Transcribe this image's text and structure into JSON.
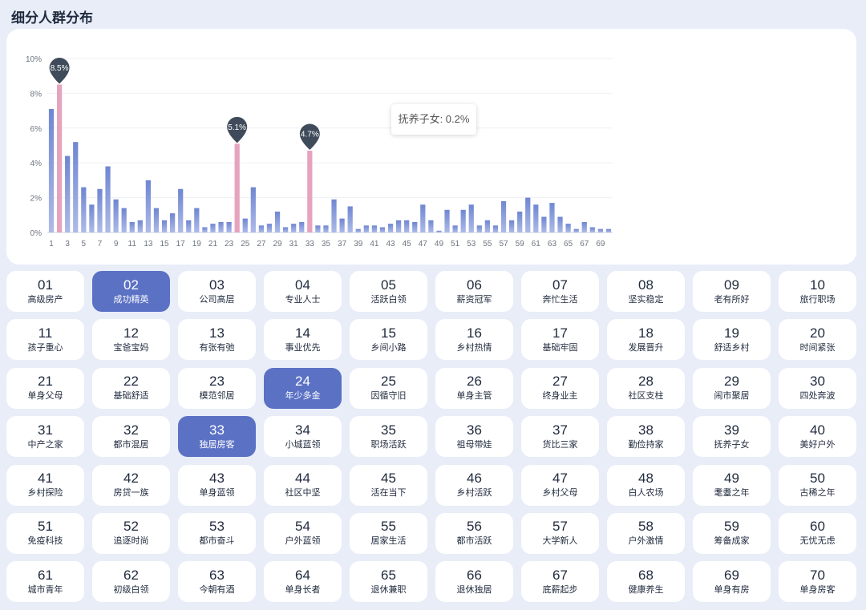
{
  "page_title": "细分人群分布",
  "tooltip": {
    "text": "抚养子女: 0.2%"
  },
  "colors": {
    "bar": "#6f86d1",
    "highlight": "#e6a3be",
    "pin": "#3f4b5a",
    "selected": "#5b71c4"
  },
  "chart_data": {
    "type": "bar",
    "title": "细分人群分布",
    "xlabel": "",
    "ylabel": "",
    "ylim": [
      0,
      10
    ],
    "y_ticks": [
      "0%",
      "2%",
      "4%",
      "6%",
      "8%",
      "10%"
    ],
    "categories": [
      "1",
      "2",
      "3",
      "4",
      "5",
      "6",
      "7",
      "8",
      "9",
      "10",
      "11",
      "12",
      "13",
      "14",
      "15",
      "16",
      "17",
      "18",
      "19",
      "20",
      "21",
      "22",
      "23",
      "24",
      "25",
      "26",
      "27",
      "28",
      "29",
      "30",
      "31",
      "32",
      "33",
      "34",
      "35",
      "36",
      "37",
      "38",
      "39",
      "40",
      "41",
      "42",
      "43",
      "44",
      "45",
      "46",
      "47",
      "48",
      "49",
      "50",
      "51",
      "52",
      "53",
      "54",
      "55",
      "56",
      "57",
      "58",
      "59",
      "60",
      "61",
      "62",
      "63",
      "64",
      "65",
      "66",
      "67",
      "68",
      "69",
      "70"
    ],
    "x_tick_labels": [
      "1",
      "3",
      "5",
      "7",
      "9",
      "11",
      "13",
      "15",
      "17",
      "19",
      "21",
      "23",
      "25",
      "27",
      "29",
      "31",
      "33",
      "35",
      "37",
      "39",
      "41",
      "43",
      "45",
      "47",
      "49",
      "51",
      "53",
      "55",
      "57",
      "59",
      "61",
      "63",
      "65",
      "67",
      "69"
    ],
    "values": [
      7.1,
      8.5,
      4.4,
      5.2,
      2.6,
      1.6,
      2.5,
      3.8,
      1.9,
      1.4,
      0.6,
      0.7,
      3.0,
      1.4,
      0.7,
      1.1,
      2.5,
      0.7,
      1.4,
      0.3,
      0.5,
      0.6,
      0.6,
      5.1,
      0.8,
      2.6,
      0.4,
      0.5,
      1.2,
      0.3,
      0.5,
      0.6,
      4.7,
      0.4,
      0.4,
      1.9,
      0.8,
      1.5,
      0.2,
      0.4,
      0.4,
      0.3,
      0.5,
      0.7,
      0.7,
      0.6,
      1.6,
      0.7,
      0.1,
      1.3,
      0.4,
      1.3,
      1.6,
      0.4,
      0.7,
      0.4,
      1.8,
      0.7,
      1.2,
      2.0,
      1.6,
      0.9,
      1.7,
      0.9,
      0.5,
      0.2,
      0.6,
      0.3,
      0.2,
      0.2
    ],
    "highlighted": [
      2,
      24,
      33
    ],
    "pin_labels": [
      "8.5%",
      "5.1%",
      "4.7%"
    ]
  },
  "segments": [
    {
      "num": "01",
      "name": "高级房产"
    },
    {
      "num": "02",
      "name": "成功精英"
    },
    {
      "num": "03",
      "name": "公司高层"
    },
    {
      "num": "04",
      "name": "专业人士"
    },
    {
      "num": "05",
      "name": "活跃白领"
    },
    {
      "num": "06",
      "name": "薪资冠军"
    },
    {
      "num": "07",
      "name": "奔忙生活"
    },
    {
      "num": "08",
      "name": "坚实稳定"
    },
    {
      "num": "09",
      "name": "老有所好"
    },
    {
      "num": "10",
      "name": "旅行职场"
    },
    {
      "num": "11",
      "name": "孩子重心"
    },
    {
      "num": "12",
      "name": "宝爸宝妈"
    },
    {
      "num": "13",
      "name": "有张有弛"
    },
    {
      "num": "14",
      "name": "事业优先"
    },
    {
      "num": "15",
      "name": "乡间小路"
    },
    {
      "num": "16",
      "name": "乡村热情"
    },
    {
      "num": "17",
      "name": "基础牢固"
    },
    {
      "num": "18",
      "name": "发展晋升"
    },
    {
      "num": "19",
      "name": "舒适乡村"
    },
    {
      "num": "20",
      "name": "时间紧张"
    },
    {
      "num": "21",
      "name": "单身父母"
    },
    {
      "num": "22",
      "name": "基础舒适"
    },
    {
      "num": "23",
      "name": "模范邻居"
    },
    {
      "num": "24",
      "name": "年少多金"
    },
    {
      "num": "25",
      "name": "因循守旧"
    },
    {
      "num": "26",
      "name": "单身主管"
    },
    {
      "num": "27",
      "name": "终身业主"
    },
    {
      "num": "28",
      "name": "社区支柱"
    },
    {
      "num": "29",
      "name": "闹市聚居"
    },
    {
      "num": "30",
      "name": "四处奔波"
    },
    {
      "num": "31",
      "name": "中产之家"
    },
    {
      "num": "32",
      "name": "都市混居"
    },
    {
      "num": "33",
      "name": "独居房客"
    },
    {
      "num": "34",
      "name": "小城蓝领"
    },
    {
      "num": "35",
      "name": "职场活跃"
    },
    {
      "num": "36",
      "name": "祖母带娃"
    },
    {
      "num": "37",
      "name": "货比三家"
    },
    {
      "num": "38",
      "name": "勤俭持家"
    },
    {
      "num": "39",
      "name": "抚养子女"
    },
    {
      "num": "40",
      "name": "美好户外"
    },
    {
      "num": "41",
      "name": "乡村探险"
    },
    {
      "num": "42",
      "name": "房贷一族"
    },
    {
      "num": "43",
      "name": "单身蓝领"
    },
    {
      "num": "44",
      "name": "社区中坚"
    },
    {
      "num": "45",
      "name": "活在当下"
    },
    {
      "num": "46",
      "name": "乡村活跃"
    },
    {
      "num": "47",
      "name": "乡村父母"
    },
    {
      "num": "48",
      "name": "白人农场"
    },
    {
      "num": "49",
      "name": "耄耋之年"
    },
    {
      "num": "50",
      "name": "古稀之年"
    },
    {
      "num": "51",
      "name": "免疫科技"
    },
    {
      "num": "52",
      "name": "追逐时尚"
    },
    {
      "num": "53",
      "name": "都市奋斗"
    },
    {
      "num": "54",
      "name": "户外蓝领"
    },
    {
      "num": "55",
      "name": "居家生活"
    },
    {
      "num": "56",
      "name": "都市活跃"
    },
    {
      "num": "57",
      "name": "大学新人"
    },
    {
      "num": "58",
      "name": "户外激情"
    },
    {
      "num": "59",
      "name": "筹备成家"
    },
    {
      "num": "60",
      "name": "无忧无虑"
    },
    {
      "num": "61",
      "name": "城市青年"
    },
    {
      "num": "62",
      "name": "初级白领"
    },
    {
      "num": "63",
      "name": "今朝有酒"
    },
    {
      "num": "64",
      "name": "单身长者"
    },
    {
      "num": "65",
      "name": "退休兼职"
    },
    {
      "num": "66",
      "name": "退休独居"
    },
    {
      "num": "67",
      "name": "底薪起步"
    },
    {
      "num": "68",
      "name": "健康养生"
    },
    {
      "num": "69",
      "name": "单身有房"
    },
    {
      "num": "70",
      "name": "单身房客"
    }
  ],
  "selected_segments": [
    "02",
    "24",
    "33"
  ]
}
